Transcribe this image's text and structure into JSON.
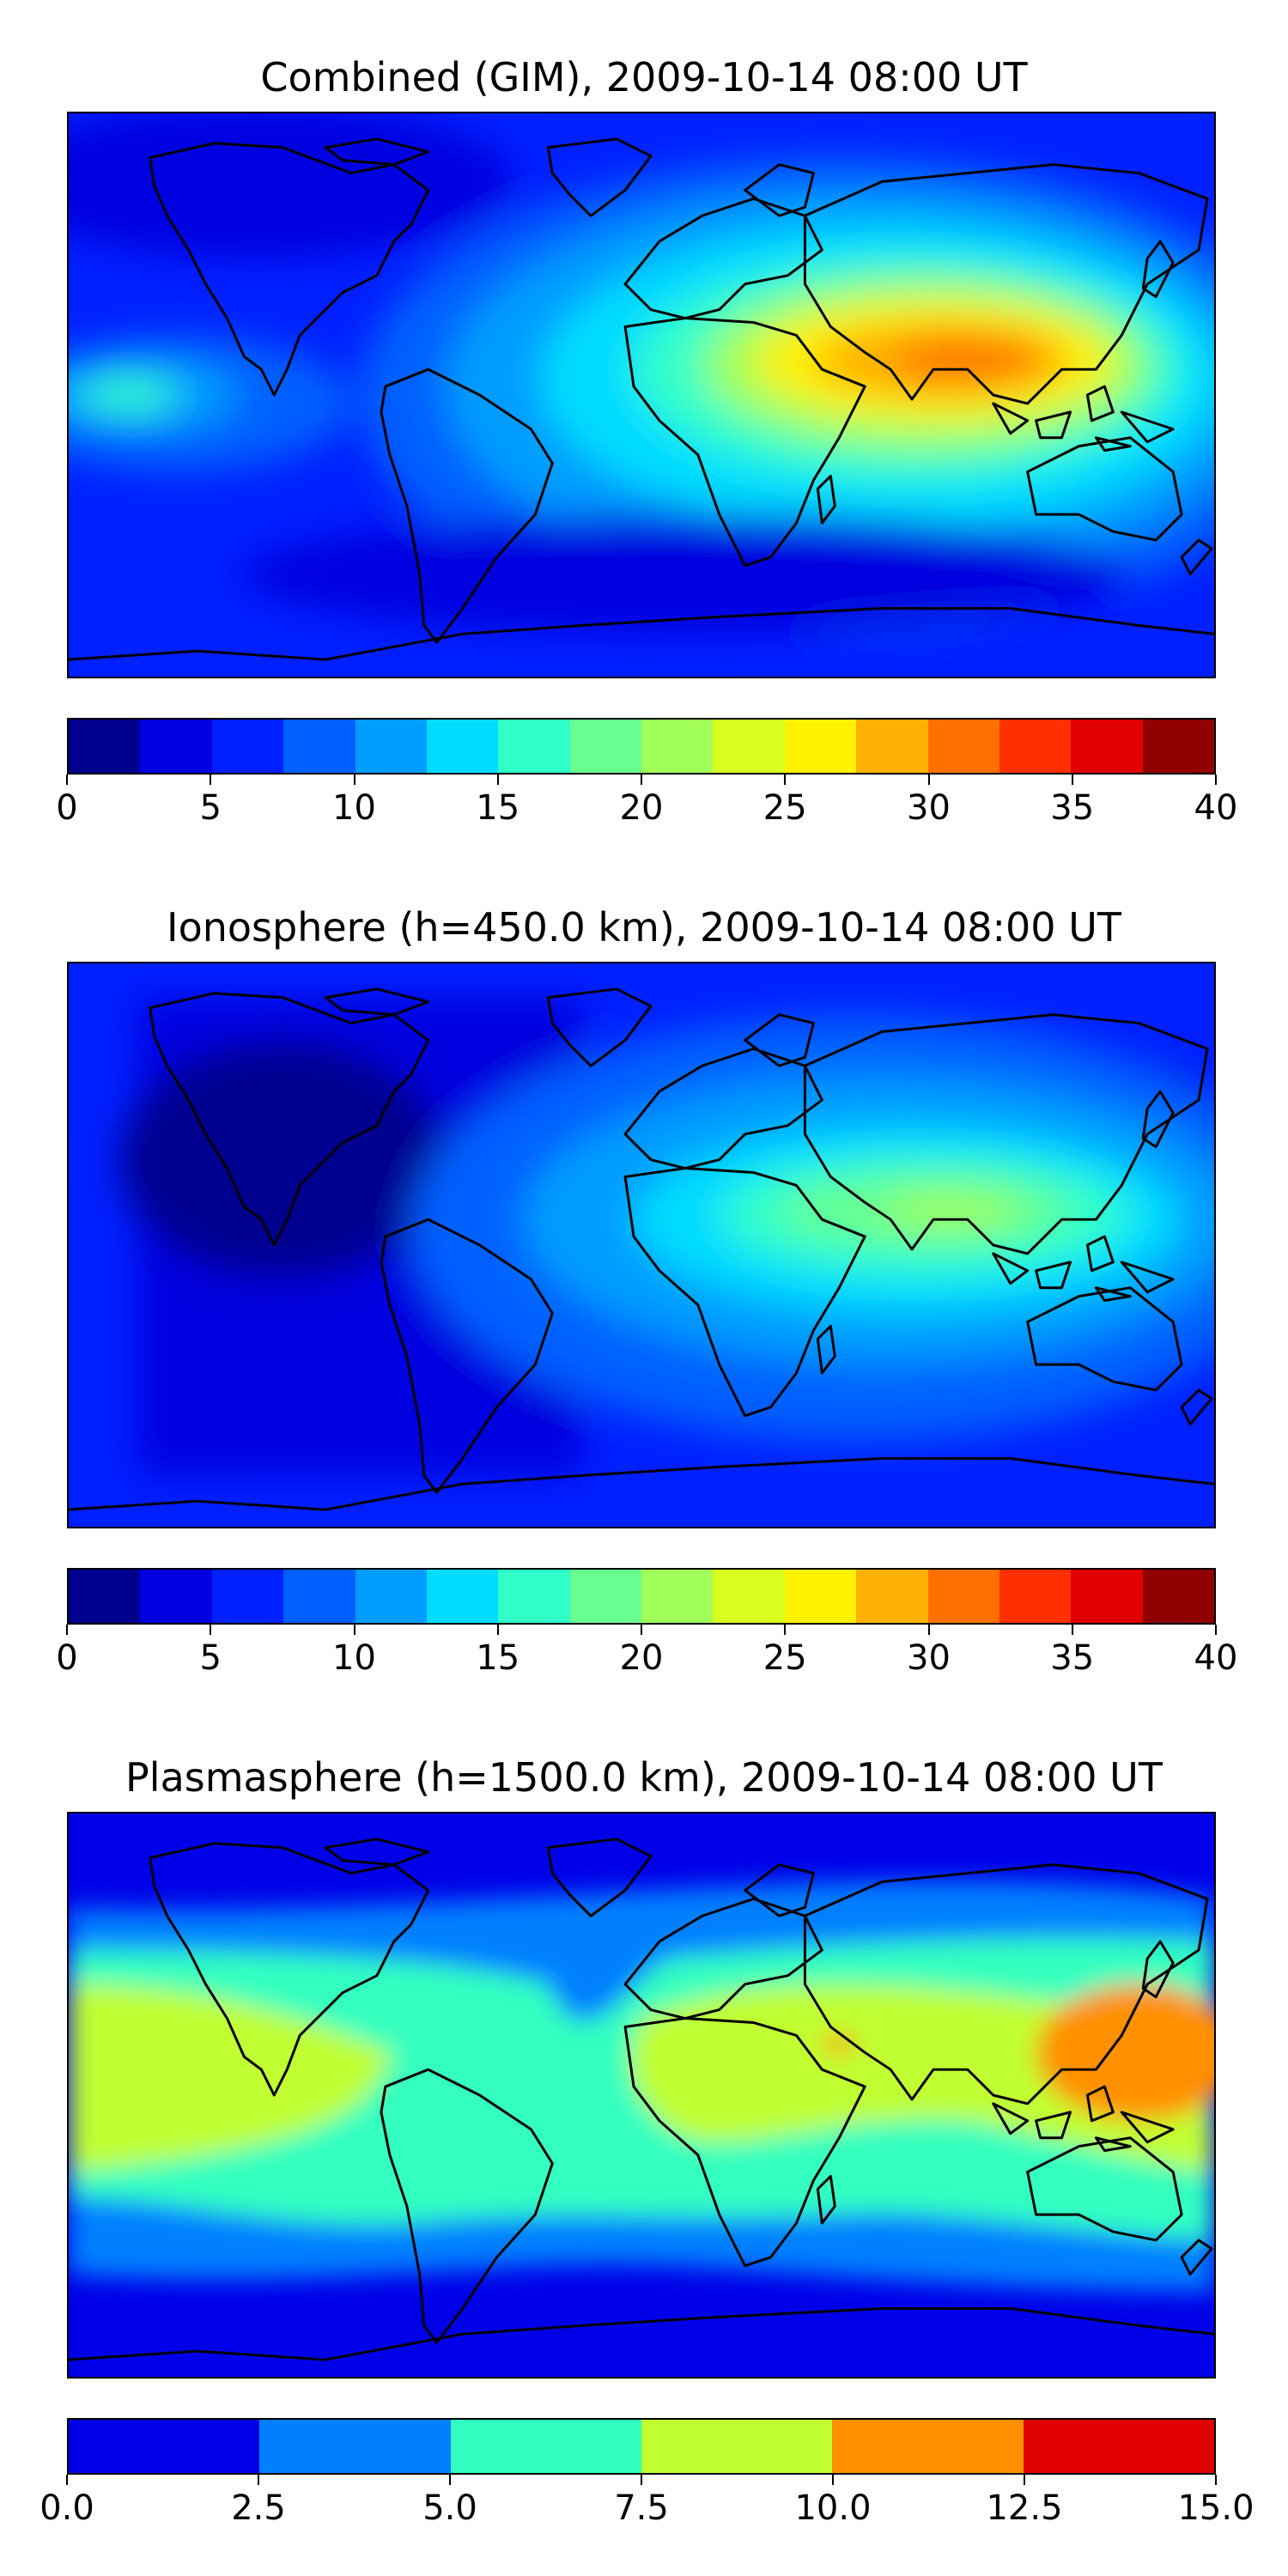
{
  "panels": [
    {
      "title": "Combined (GIM), 2009-10-14 08:00 UT",
      "colorbar": {
        "colors": [
          "#00008e",
          "#0000e0",
          "#0020ff",
          "#0060ff",
          "#009cff",
          "#00dcff",
          "#30ffc8",
          "#68ff90",
          "#a0ff58",
          "#d8ff20",
          "#fff200",
          "#ffb000",
          "#ff7000",
          "#ff3000",
          "#e00000",
          "#900000"
        ],
        "ticks": [
          "0",
          "5",
          "10",
          "15",
          "20",
          "25",
          "30",
          "35",
          "40"
        ],
        "min": 0,
        "max": 40
      }
    },
    {
      "title": "Ionosphere  (h=450.0 km), 2009-10-14 08:00 UT",
      "colorbar": {
        "colors": [
          "#00008e",
          "#0000e0",
          "#0020ff",
          "#0060ff",
          "#009cff",
          "#00dcff",
          "#30ffc8",
          "#68ff90",
          "#a0ff58",
          "#d8ff20",
          "#fff200",
          "#ffb000",
          "#ff7000",
          "#ff3000",
          "#e00000",
          "#900000"
        ],
        "ticks": [
          "0",
          "5",
          "10",
          "15",
          "20",
          "25",
          "30",
          "35",
          "40"
        ],
        "min": 0,
        "max": 40
      }
    },
    {
      "title": "Plasmasphere (h=1500.0 km), 2009-10-14 08:00 UT",
      "colorbar": {
        "colors": [
          "#0000e8",
          "#0080ff",
          "#30ffc0",
          "#c0ff30",
          "#ff9000",
          "#e00000"
        ],
        "ticks": [
          "0.0",
          "2.5",
          "5.0",
          "7.5",
          "10.0",
          "12.5",
          "15.0"
        ],
        "min": 0,
        "max": 15
      }
    }
  ]
}
